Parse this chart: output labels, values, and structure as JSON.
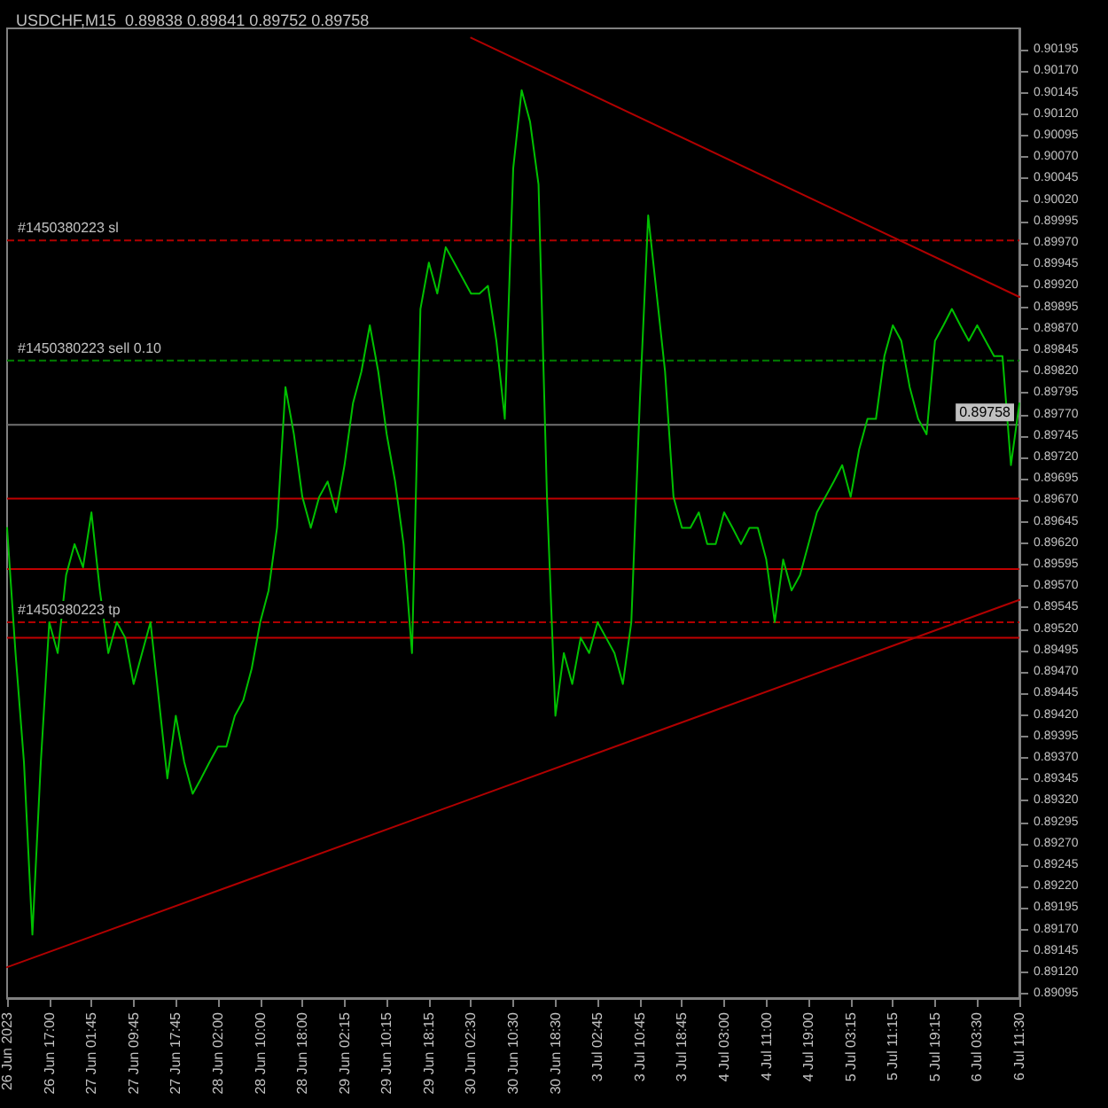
{
  "chart_data": {
    "type": "line",
    "title": "USDCHF,M15  0.89838 0.89841 0.89752 0.89758",
    "categories": [
      "26 Jun 2023",
      null,
      null,
      null,
      null,
      "26 Jun 17:00",
      null,
      null,
      null,
      null,
      "27 Jun 01:45",
      null,
      null,
      null,
      null,
      "27 Jun 09:45",
      null,
      null,
      null,
      null,
      "27 Jun 17:45",
      null,
      null,
      null,
      null,
      "28 Jun 02:00",
      null,
      null,
      null,
      null,
      "28 Jun 10:00",
      null,
      null,
      null,
      null,
      "28 Jun 18:00",
      null,
      null,
      null,
      null,
      "29 Jun 02:15",
      null,
      null,
      null,
      null,
      "29 Jun 10:15",
      null,
      null,
      null,
      null,
      "29 Jun 18:15",
      null,
      null,
      null,
      null,
      "30 Jun 02:30",
      null,
      null,
      null,
      null,
      "30 Jun 10:30",
      null,
      null,
      null,
      null,
      "30 Jun 18:30",
      null,
      null,
      null,
      null,
      "3 Jul 02:45",
      null,
      null,
      null,
      null,
      "3 Jul 10:45",
      null,
      null,
      null,
      null,
      "3 Jul 18:45",
      null,
      null,
      null,
      null,
      "4 Jul 03:00",
      null,
      null,
      null,
      null,
      "4 Jul 11:00",
      null,
      null,
      null,
      null,
      "4 Jul 19:00",
      null,
      null,
      null,
      null,
      "5 Jul 03:15",
      null,
      null,
      null,
      null,
      "5 Jul 11:15",
      null,
      null,
      null,
      null,
      "5 Jul 19:15",
      null,
      null,
      null,
      null,
      "6 Jul 03:30",
      null,
      null,
      null,
      null,
      "6 Jul 11:30"
    ],
    "ylim": [
      0.8909,
      0.9022
    ],
    "yticks": [
      {
        "value": 0.89095,
        "label": "0.89095"
      },
      {
        "value": 0.8912,
        "label": "0.89120"
      },
      {
        "value": 0.89145,
        "label": "0.89145"
      },
      {
        "value": 0.8917,
        "label": "0.89170"
      },
      {
        "value": 0.89195,
        "label": "0.89195"
      },
      {
        "value": 0.8922,
        "label": "0.89220"
      },
      {
        "value": 0.89245,
        "label": "0.89245"
      },
      {
        "value": 0.8927,
        "label": "0.89270"
      },
      {
        "value": 0.89295,
        "label": "0.89295"
      },
      {
        "value": 0.8932,
        "label": "0.89320"
      },
      {
        "value": 0.89345,
        "label": "0.89345"
      },
      {
        "value": 0.8937,
        "label": "0.89370"
      },
      {
        "value": 0.89395,
        "label": "0.89395"
      },
      {
        "value": 0.8942,
        "label": "0.89420"
      },
      {
        "value": 0.89445,
        "label": "0.89445"
      },
      {
        "value": 0.8947,
        "label": "0.89470"
      },
      {
        "value": 0.89495,
        "label": "0.89495"
      },
      {
        "value": 0.8952,
        "label": "0.89520"
      },
      {
        "value": 0.89545,
        "label": "0.89545"
      },
      {
        "value": 0.8957,
        "label": "0.89570"
      },
      {
        "value": 0.89595,
        "label": "0.89595"
      },
      {
        "value": 0.8962,
        "label": "0.89620"
      },
      {
        "value": 0.89645,
        "label": "0.89645"
      },
      {
        "value": 0.8967,
        "label": "0.89670"
      },
      {
        "value": 0.89695,
        "label": "0.89695"
      },
      {
        "value": 0.8972,
        "label": "0.89720"
      },
      {
        "value": 0.89745,
        "label": "0.89745"
      },
      {
        "value": 0.8977,
        "label": "0.89770"
      },
      {
        "value": 0.89795,
        "label": "0.89795"
      },
      {
        "value": 0.8982,
        "label": "0.89820"
      },
      {
        "value": 0.89845,
        "label": "0.89845"
      },
      {
        "value": 0.8987,
        "label": "0.89870"
      },
      {
        "value": 0.89895,
        "label": "0.89895"
      },
      {
        "value": 0.8992,
        "label": "0.89920"
      },
      {
        "value": 0.89945,
        "label": "0.89945"
      },
      {
        "value": 0.8997,
        "label": "0.89970"
      },
      {
        "value": 0.89995,
        "label": "0.89995"
      },
      {
        "value": 0.9002,
        "label": "0.90020"
      },
      {
        "value": 0.90045,
        "label": "0.90045"
      },
      {
        "value": 0.9007,
        "label": "0.90070"
      },
      {
        "value": 0.90095,
        "label": "0.90095"
      },
      {
        "value": 0.9012,
        "label": "0.90120"
      },
      {
        "value": 0.90145,
        "label": "0.90145"
      },
      {
        "value": 0.9017,
        "label": "0.90170"
      },
      {
        "value": 0.90195,
        "label": "0.90195"
      }
    ],
    "series": [
      {
        "color": "#00c000",
        "values": [
          0.89638,
          0.89492,
          0.89365,
          0.89164,
          0.89365,
          0.89528,
          0.89492,
          0.89583,
          0.89619,
          0.89592,
          0.89656,
          0.89565,
          0.89492,
          0.89528,
          0.8951,
          0.89456,
          0.89492,
          0.89528,
          0.89437,
          0.89346,
          0.89419,
          0.89365,
          0.89328,
          0.89346,
          0.89365,
          0.89383,
          0.89383,
          0.89419,
          0.89437,
          0.89474,
          0.89528,
          0.89565,
          0.89638,
          0.89802,
          0.89747,
          0.89674,
          0.89638,
          0.89674,
          0.89692,
          0.89656,
          0.89711,
          0.89783,
          0.8982,
          0.89874,
          0.8982,
          0.89747,
          0.89692,
          0.89619,
          0.89492,
          0.89893,
          0.89947,
          0.89911,
          0.89965,
          0.89947,
          0.89929,
          0.89911,
          0.89911,
          0.8992,
          0.89856,
          0.89765,
          0.90057,
          0.90148,
          0.90111,
          0.90038,
          0.89674,
          0.89419,
          0.89492,
          0.89456,
          0.8951,
          0.89492,
          0.89528,
          0.8951,
          0.89492,
          0.89456,
          0.89528,
          0.89783,
          0.90002,
          0.89911,
          0.8982,
          0.89674,
          0.89638,
          0.89638,
          0.89656,
          0.89619,
          0.89619,
          0.89656,
          0.89638,
          0.89619,
          0.89638,
          0.89638,
          0.89601,
          0.89528,
          0.89601,
          0.89565,
          0.89583,
          0.89619,
          0.89656,
          0.89674,
          0.89692,
          0.89711,
          0.89674,
          0.89729,
          0.89765,
          0.89765,
          0.89838,
          0.89874,
          0.89856,
          0.89802,
          0.89765,
          0.89747,
          0.89856,
          0.89874,
          0.89893,
          0.89874,
          0.89856,
          0.89874,
          0.89856,
          0.89838,
          0.89838,
          0.89711,
          0.89783
        ]
      },
      {
        "color": "#b00000",
        "x": [
          "30 Jun 02:30",
          "6 Jul 11:30"
        ],
        "values": [
          0.90209,
          0.89907
        ]
      },
      {
        "color": "#b00000",
        "x": [
          "26 Jun 2023",
          "6 Jul 11:30"
        ],
        "values": [
          0.89126,
          0.89554
        ]
      }
    ],
    "ref_lines": [
      {
        "axis": "y",
        "value": 0.89973,
        "label": "#1450380223 sl",
        "color": "#b00000",
        "line_style": "dashed"
      },
      {
        "axis": "y",
        "value": 0.89833,
        "label": "#1450380223 sell 0.10",
        "color": "#008000",
        "line_style": "dashed"
      },
      {
        "axis": "y",
        "value": 0.89758,
        "label": "0.89758",
        "color": "#707070",
        "line_style": "solid"
      },
      {
        "axis": "y",
        "value": 0.89672,
        "label": null,
        "color": "#c00000",
        "line_style": "solid"
      },
      {
        "axis": "y",
        "value": 0.8959,
        "label": null,
        "color": "#c00000",
        "line_style": "solid"
      },
      {
        "axis": "y",
        "value": 0.89528,
        "label": "#1450380223 tp",
        "color": "#b00000",
        "line_style": "dashed"
      },
      {
        "axis": "y",
        "value": 0.8951,
        "label": null,
        "color": "#c00000",
        "line_style": "solid"
      }
    ],
    "marker": "none",
    "grid": false
  }
}
